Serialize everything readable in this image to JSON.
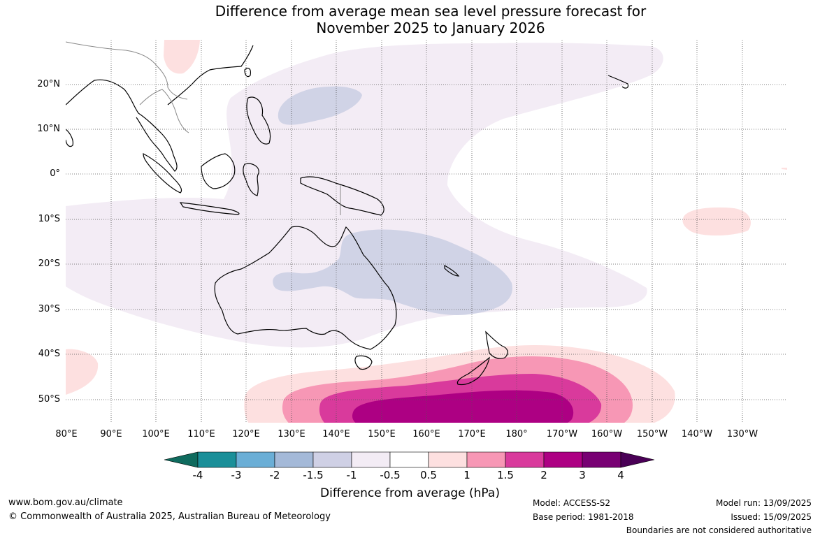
{
  "title": {
    "line1": "Difference from average mean sea level pressure forecast for",
    "line2": "November 2025 to January 2026"
  },
  "latitude_labels": [
    "20°N",
    "10°N",
    "0°",
    "10°S",
    "20°S",
    "30°S",
    "40°S",
    "50°S"
  ],
  "longitude_labels": [
    "80°E",
    "90°E",
    "100°E",
    "110°E",
    "120°E",
    "130°E",
    "140°E",
    "150°E",
    "160°E",
    "170°E",
    "180°",
    "170°W",
    "160°W",
    "150°W",
    "140°W",
    "130°W"
  ],
  "colorbar": {
    "tick_labels": [
      "-4",
      "-3",
      "-2",
      "-1.5",
      "-1",
      "-0.5",
      "0.5",
      "1",
      "1.5",
      "2",
      "3",
      "4"
    ],
    "colors": [
      "#0f6b5e",
      "#1a8f99",
      "#6aaed6",
      "#a4b9d8",
      "#cfd0e5",
      "#f3ecf5",
      "#ffffff",
      "#fde0e0",
      "#f797b5",
      "#d93a9c",
      "#ad0083",
      "#780073",
      "#4a0056"
    ],
    "title": "Difference from average (hPa)"
  },
  "footer": {
    "url": "www.bom.gov.au/climate",
    "copyright": "© Commonwealth of Australia 2025, Australian Bureau of Meteorology",
    "model": "Model: ACCESS-S2",
    "base_period": "Base period: 1981-2018",
    "model_run": "Model run: 13/09/2025",
    "issued": "Issued: 15/09/2025",
    "disclaimer": "Boundaries are not considered authoritative"
  },
  "anomaly_colors": {
    "neg_0_5_to_1": "#f3ecf5",
    "neg_1_to_1_5": "#d0d3e6",
    "pos_0_5_to_1": "#fde0e0",
    "pos_1_to_1_5": "#f797b5",
    "pos_1_5_to_2": "#d93a9c",
    "pos_2_to_3": "#ad0083"
  }
}
